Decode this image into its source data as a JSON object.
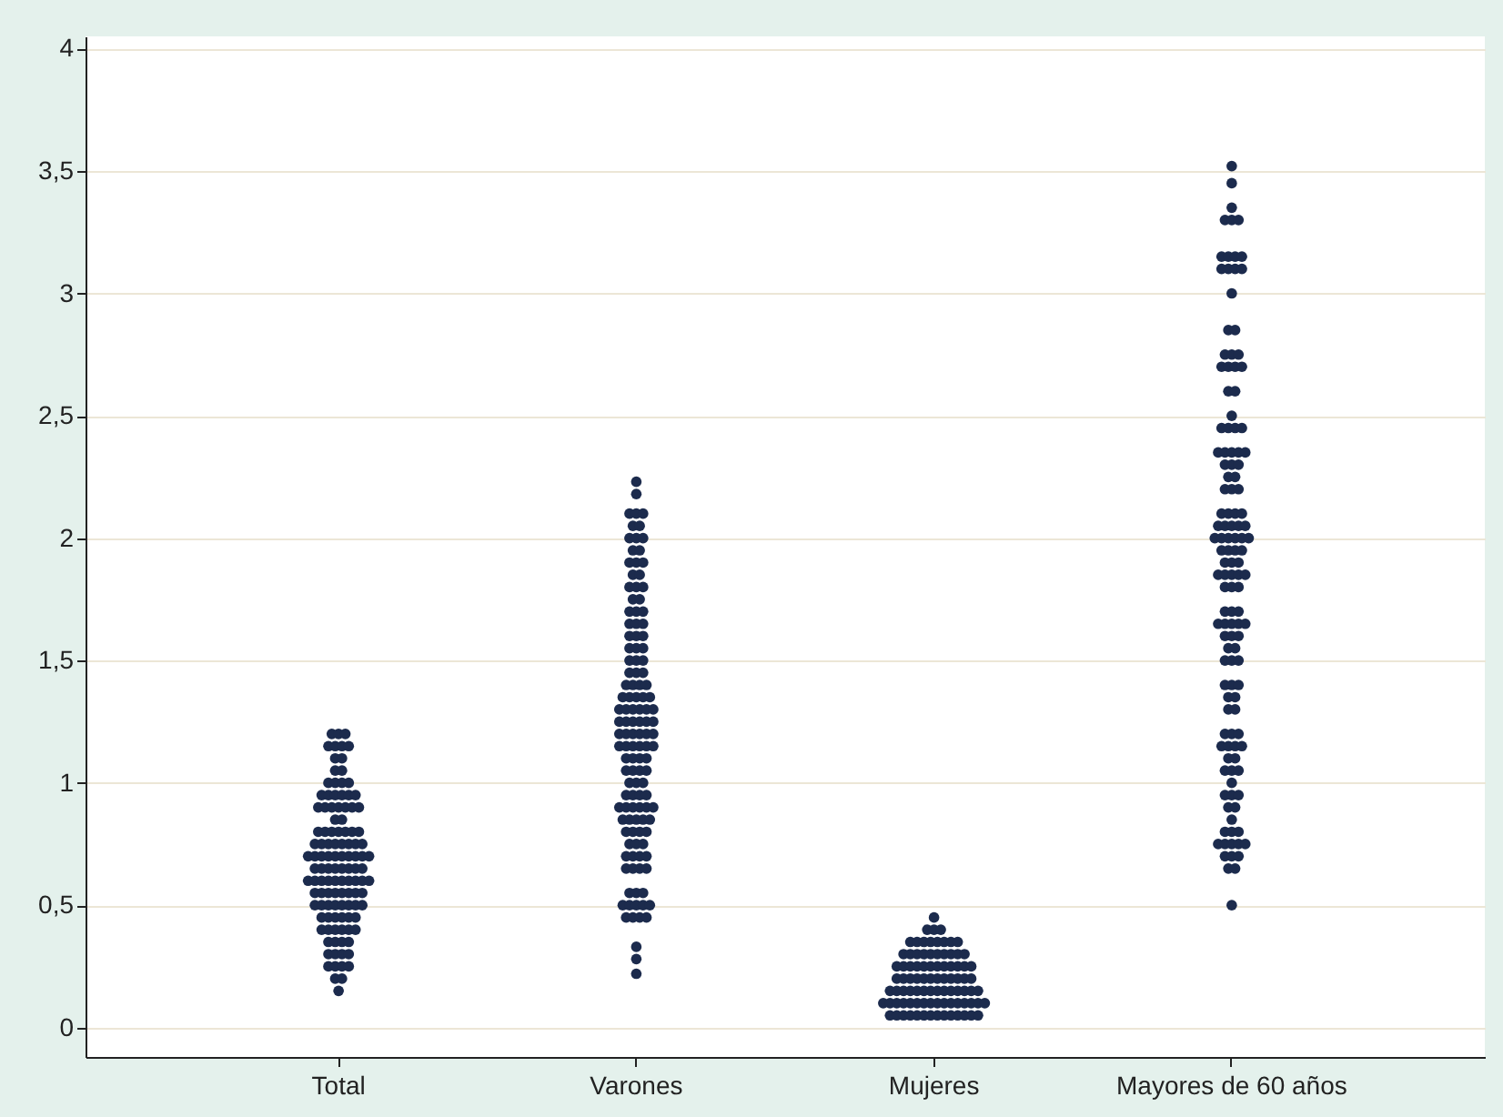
{
  "chart_data": {
    "type": "scatter",
    "categories": [
      "Total",
      "Varones",
      "Mujeres",
      "Mayores de 60 años"
    ],
    "ylim": [
      -0.12,
      4.05
    ],
    "yticks": [
      0,
      {
        "value": 0.5,
        "label": "0,5"
      },
      1,
      {
        "value": 1.5,
        "label": "1,5"
      },
      2,
      {
        "value": 2.5,
        "label": "2,5"
      },
      3,
      {
        "value": 3.5,
        "label": "3,5"
      },
      4
    ],
    "grid": "y",
    "marker": "circle",
    "legend": false,
    "series": [
      {
        "color": "#1c2b4d",
        "x": [
          "Total",
          "Total",
          "Total",
          "Total",
          "Total",
          "Total",
          "Total",
          "Total",
          "Total",
          "Total",
          "Total",
          "Total",
          "Total",
          "Total",
          "Total",
          "Total",
          "Total",
          "Total",
          "Total",
          "Total",
          "Total",
          "Total",
          "Total",
          "Total",
          "Total",
          "Total",
          "Total",
          "Total",
          "Total",
          "Total",
          "Total",
          "Total",
          "Total",
          "Total",
          "Total",
          "Total",
          "Total",
          "Total",
          "Total",
          "Total",
          "Total",
          "Total",
          "Total",
          "Total",
          "Total",
          "Total",
          "Total",
          "Total",
          "Total",
          "Total",
          "Total",
          "Total",
          "Total",
          "Total",
          "Total",
          "Total",
          "Total",
          "Total",
          "Total",
          "Total",
          "Total",
          "Total",
          "Total",
          "Total",
          "Total",
          "Total",
          "Total",
          "Total",
          "Total",
          "Total",
          "Total",
          "Total",
          "Total",
          "Total",
          "Total",
          "Total",
          "Total",
          "Total",
          "Total",
          "Total",
          "Total",
          "Total",
          "Total",
          "Total",
          "Total",
          "Total",
          "Total",
          "Total",
          "Total",
          "Total",
          "Total",
          "Total",
          "Total",
          "Total",
          "Total",
          "Total",
          "Total",
          "Total",
          "Total",
          "Total",
          "Total",
          "Total",
          "Total",
          "Total",
          "Total",
          "Total",
          "Total",
          "Total",
          "Total",
          "Total",
          "Total",
          "Total",
          "Total",
          "Total",
          "Total",
          "Total"
        ],
        "values": [
          0.15,
          0.2,
          0.2,
          0.25,
          0.25,
          0.25,
          0.25,
          0.3,
          0.3,
          0.3,
          0.3,
          0.35,
          0.35,
          0.35,
          0.35,
          0.4,
          0.4,
          0.4,
          0.4,
          0.4,
          0.4,
          0.45,
          0.45,
          0.45,
          0.45,
          0.45,
          0.45,
          0.5,
          0.5,
          0.5,
          0.5,
          0.5,
          0.5,
          0.5,
          0.5,
          0.55,
          0.55,
          0.55,
          0.55,
          0.55,
          0.55,
          0.55,
          0.55,
          0.6,
          0.6,
          0.6,
          0.6,
          0.6,
          0.6,
          0.6,
          0.6,
          0.6,
          0.6,
          0.65,
          0.65,
          0.65,
          0.65,
          0.65,
          0.65,
          0.65,
          0.65,
          0.7,
          0.7,
          0.7,
          0.7,
          0.7,
          0.7,
          0.7,
          0.7,
          0.7,
          0.7,
          0.75,
          0.75,
          0.75,
          0.75,
          0.75,
          0.75,
          0.75,
          0.75,
          0.8,
          0.8,
          0.8,
          0.8,
          0.8,
          0.8,
          0.8,
          0.85,
          0.85,
          0.9,
          0.9,
          0.9,
          0.9,
          0.9,
          0.9,
          0.9,
          0.95,
          0.95,
          0.95,
          0.95,
          0.95,
          0.95,
          1.0,
          1.0,
          1.0,
          1.0,
          1.05,
          1.05,
          1.1,
          1.1,
          1.15,
          1.15,
          1.15,
          1.15,
          1.2,
          1.2,
          1.2
        ]
      },
      {
        "color": "#1c2b4d",
        "x": [
          "Varones",
          "Varones",
          "Varones",
          "Varones",
          "Varones",
          "Varones",
          "Varones",
          "Varones",
          "Varones",
          "Varones",
          "Varones",
          "Varones",
          "Varones",
          "Varones",
          "Varones",
          "Varones",
          "Varones",
          "Varones",
          "Varones",
          "Varones",
          "Varones",
          "Varones",
          "Varones",
          "Varones",
          "Varones",
          "Varones",
          "Varones",
          "Varones",
          "Varones",
          "Varones",
          "Varones",
          "Varones",
          "Varones",
          "Varones",
          "Varones",
          "Varones",
          "Varones",
          "Varones",
          "Varones",
          "Varones",
          "Varones",
          "Varones",
          "Varones",
          "Varones",
          "Varones",
          "Varones",
          "Varones",
          "Varones",
          "Varones",
          "Varones",
          "Varones",
          "Varones",
          "Varones",
          "Varones",
          "Varones",
          "Varones",
          "Varones",
          "Varones",
          "Varones",
          "Varones",
          "Varones",
          "Varones",
          "Varones",
          "Varones",
          "Varones",
          "Varones",
          "Varones",
          "Varones",
          "Varones",
          "Varones",
          "Varones",
          "Varones",
          "Varones",
          "Varones",
          "Varones",
          "Varones",
          "Varones",
          "Varones",
          "Varones",
          "Varones",
          "Varones",
          "Varones",
          "Varones",
          "Varones",
          "Varones",
          "Varones",
          "Varones",
          "Varones",
          "Varones",
          "Varones",
          "Varones",
          "Varones",
          "Varones",
          "Varones",
          "Varones",
          "Varones",
          "Varones",
          "Varones",
          "Varones",
          "Varones",
          "Varones",
          "Varones",
          "Varones",
          "Varones",
          "Varones",
          "Varones",
          "Varones",
          "Varones",
          "Varones",
          "Varones",
          "Varones",
          "Varones",
          "Varones",
          "Varones",
          "Varones",
          "Varones",
          "Varones",
          "Varones",
          "Varones",
          "Varones",
          "Varones",
          "Varones",
          "Varones",
          "Varones",
          "Varones",
          "Varones",
          "Varones",
          "Varones",
          "Varones"
        ],
        "values": [
          0.22,
          0.28,
          0.33,
          0.45,
          0.45,
          0.45,
          0.45,
          0.5,
          0.5,
          0.5,
          0.5,
          0.5,
          0.55,
          0.55,
          0.55,
          0.65,
          0.65,
          0.65,
          0.65,
          0.7,
          0.7,
          0.7,
          0.7,
          0.75,
          0.75,
          0.75,
          0.8,
          0.8,
          0.8,
          0.8,
          0.85,
          0.85,
          0.85,
          0.85,
          0.85,
          0.9,
          0.9,
          0.9,
          0.9,
          0.9,
          0.9,
          0.95,
          0.95,
          0.95,
          0.95,
          1.0,
          1.0,
          1.0,
          1.05,
          1.05,
          1.05,
          1.05,
          1.1,
          1.1,
          1.1,
          1.1,
          1.15,
          1.15,
          1.15,
          1.15,
          1.15,
          1.15,
          1.2,
          1.2,
          1.2,
          1.2,
          1.2,
          1.2,
          1.25,
          1.25,
          1.25,
          1.25,
          1.25,
          1.25,
          1.3,
          1.3,
          1.3,
          1.3,
          1.3,
          1.3,
          1.35,
          1.35,
          1.35,
          1.35,
          1.35,
          1.4,
          1.4,
          1.4,
          1.4,
          1.45,
          1.45,
          1.45,
          1.5,
          1.5,
          1.5,
          1.55,
          1.55,
          1.55,
          1.6,
          1.6,
          1.6,
          1.65,
          1.65,
          1.65,
          1.7,
          1.7,
          1.7,
          1.75,
          1.75,
          1.8,
          1.8,
          1.8,
          1.85,
          1.85,
          1.9,
          1.9,
          1.9,
          1.95,
          1.95,
          2.0,
          2.0,
          2.0,
          2.05,
          2.05,
          2.1,
          2.1,
          2.1,
          2.18,
          2.23
        ]
      },
      {
        "color": "#1c2b4d",
        "x": [
          "Mujeres",
          "Mujeres",
          "Mujeres",
          "Mujeres",
          "Mujeres",
          "Mujeres",
          "Mujeres",
          "Mujeres",
          "Mujeres",
          "Mujeres",
          "Mujeres",
          "Mujeres",
          "Mujeres",
          "Mujeres",
          "Mujeres",
          "Mujeres",
          "Mujeres",
          "Mujeres",
          "Mujeres",
          "Mujeres",
          "Mujeres",
          "Mujeres",
          "Mujeres",
          "Mujeres",
          "Mujeres",
          "Mujeres",
          "Mujeres",
          "Mujeres",
          "Mujeres",
          "Mujeres",
          "Mujeres",
          "Mujeres",
          "Mujeres",
          "Mujeres",
          "Mujeres",
          "Mujeres",
          "Mujeres",
          "Mujeres",
          "Mujeres",
          "Mujeres",
          "Mujeres",
          "Mujeres",
          "Mujeres",
          "Mujeres",
          "Mujeres",
          "Mujeres",
          "Mujeres",
          "Mujeres",
          "Mujeres",
          "Mujeres",
          "Mujeres",
          "Mujeres",
          "Mujeres",
          "Mujeres",
          "Mujeres",
          "Mujeres",
          "Mujeres",
          "Mujeres",
          "Mujeres",
          "Mujeres",
          "Mujeres",
          "Mujeres",
          "Mujeres",
          "Mujeres",
          "Mujeres",
          "Mujeres",
          "Mujeres",
          "Mujeres",
          "Mujeres",
          "Mujeres",
          "Mujeres",
          "Mujeres",
          "Mujeres",
          "Mujeres",
          "Mujeres",
          "Mujeres",
          "Mujeres",
          "Mujeres",
          "Mujeres",
          "Mujeres",
          "Mujeres",
          "Mujeres",
          "Mujeres",
          "Mujeres",
          "Mujeres",
          "Mujeres",
          "Mujeres",
          "Mujeres",
          "Mujeres",
          "Mujeres"
        ],
        "values": [
          0.05,
          0.05,
          0.05,
          0.05,
          0.05,
          0.05,
          0.05,
          0.05,
          0.05,
          0.05,
          0.05,
          0.05,
          0.05,
          0.05,
          0.1,
          0.1,
          0.1,
          0.1,
          0.1,
          0.1,
          0.1,
          0.1,
          0.1,
          0.1,
          0.1,
          0.1,
          0.1,
          0.1,
          0.1,
          0.1,
          0.15,
          0.15,
          0.15,
          0.15,
          0.15,
          0.15,
          0.15,
          0.15,
          0.15,
          0.15,
          0.15,
          0.15,
          0.15,
          0.15,
          0.2,
          0.2,
          0.2,
          0.2,
          0.2,
          0.2,
          0.2,
          0.2,
          0.2,
          0.2,
          0.2,
          0.2,
          0.25,
          0.25,
          0.25,
          0.25,
          0.25,
          0.25,
          0.25,
          0.25,
          0.25,
          0.25,
          0.25,
          0.25,
          0.3,
          0.3,
          0.3,
          0.3,
          0.3,
          0.3,
          0.3,
          0.3,
          0.3,
          0.3,
          0.35,
          0.35,
          0.35,
          0.35,
          0.35,
          0.35,
          0.35,
          0.35,
          0.4,
          0.4,
          0.4,
          0.45
        ]
      },
      {
        "color": "#1c2b4d",
        "x": [
          "Mayores de 60 años",
          "Mayores de 60 años",
          "Mayores de 60 años",
          "Mayores de 60 años",
          "Mayores de 60 años",
          "Mayores de 60 años",
          "Mayores de 60 años",
          "Mayores de 60 años",
          "Mayores de 60 años",
          "Mayores de 60 años",
          "Mayores de 60 años",
          "Mayores de 60 años",
          "Mayores de 60 años",
          "Mayores de 60 años",
          "Mayores de 60 años",
          "Mayores de 60 años",
          "Mayores de 60 años",
          "Mayores de 60 años",
          "Mayores de 60 años",
          "Mayores de 60 años",
          "Mayores de 60 años",
          "Mayores de 60 años",
          "Mayores de 60 años",
          "Mayores de 60 años",
          "Mayores de 60 años",
          "Mayores de 60 años",
          "Mayores de 60 años",
          "Mayores de 60 años",
          "Mayores de 60 años",
          "Mayores de 60 años",
          "Mayores de 60 años",
          "Mayores de 60 años",
          "Mayores de 60 años",
          "Mayores de 60 años",
          "Mayores de 60 años",
          "Mayores de 60 años",
          "Mayores de 60 años",
          "Mayores de 60 años",
          "Mayores de 60 años",
          "Mayores de 60 años",
          "Mayores de 60 años",
          "Mayores de 60 años",
          "Mayores de 60 años",
          "Mayores de 60 años",
          "Mayores de 60 años",
          "Mayores de 60 años",
          "Mayores de 60 años",
          "Mayores de 60 años",
          "Mayores de 60 años",
          "Mayores de 60 años",
          "Mayores de 60 años",
          "Mayores de 60 años",
          "Mayores de 60 años",
          "Mayores de 60 años",
          "Mayores de 60 años",
          "Mayores de 60 años",
          "Mayores de 60 años",
          "Mayores de 60 años",
          "Mayores de 60 años",
          "Mayores de 60 años",
          "Mayores de 60 años",
          "Mayores de 60 años",
          "Mayores de 60 años",
          "Mayores de 60 años",
          "Mayores de 60 años",
          "Mayores de 60 años",
          "Mayores de 60 años",
          "Mayores de 60 años",
          "Mayores de 60 años",
          "Mayores de 60 años",
          "Mayores de 60 años",
          "Mayores de 60 años",
          "Mayores de 60 años",
          "Mayores de 60 años",
          "Mayores de 60 años",
          "Mayores de 60 años",
          "Mayores de 60 años",
          "Mayores de 60 años",
          "Mayores de 60 años",
          "Mayores de 60 años",
          "Mayores de 60 años",
          "Mayores de 60 años",
          "Mayores de 60 años",
          "Mayores de 60 años",
          "Mayores de 60 años",
          "Mayores de 60 años",
          "Mayores de 60 años",
          "Mayores de 60 años",
          "Mayores de 60 años",
          "Mayores de 60 años",
          "Mayores de 60 años",
          "Mayores de 60 años",
          "Mayores de 60 años",
          "Mayores de 60 años",
          "Mayores de 60 años",
          "Mayores de 60 años",
          "Mayores de 60 años",
          "Mayores de 60 años",
          "Mayores de 60 años",
          "Mayores de 60 años",
          "Mayores de 60 años",
          "Mayores de 60 años",
          "Mayores de 60 años",
          "Mayores de 60 años",
          "Mayores de 60 años",
          "Mayores de 60 años",
          "Mayores de 60 años",
          "Mayores de 60 años",
          "Mayores de 60 años",
          "Mayores de 60 años",
          "Mayores de 60 años",
          "Mayores de 60 años",
          "Mayores de 60 años",
          "Mayores de 60 años",
          "Mayores de 60 años",
          "Mayores de 60 años",
          "Mayores de 60 años",
          "Mayores de 60 años",
          "Mayores de 60 años",
          "Mayores de 60 años",
          "Mayores de 60 años",
          "Mayores de 60 años",
          "Mayores de 60 años",
          "Mayores de 60 años",
          "Mayores de 60 años",
          "Mayores de 60 años",
          "Mayores de 60 años",
          "Mayores de 60 años",
          "Mayores de 60 años",
          "Mayores de 60 años"
        ],
        "values": [
          0.5,
          0.65,
          0.65,
          0.7,
          0.7,
          0.7,
          0.75,
          0.75,
          0.75,
          0.75,
          0.75,
          0.8,
          0.8,
          0.8,
          0.85,
          0.9,
          0.9,
          0.95,
          0.95,
          0.95,
          1.0,
          1.05,
          1.05,
          1.05,
          1.1,
          1.1,
          1.15,
          1.15,
          1.15,
          1.15,
          1.2,
          1.2,
          1.2,
          1.3,
          1.3,
          1.35,
          1.35,
          1.4,
          1.4,
          1.4,
          1.5,
          1.5,
          1.5,
          1.55,
          1.55,
          1.6,
          1.6,
          1.6,
          1.65,
          1.65,
          1.65,
          1.65,
          1.65,
          1.7,
          1.7,
          1.7,
          1.8,
          1.8,
          1.8,
          1.85,
          1.85,
          1.85,
          1.85,
          1.85,
          1.9,
          1.9,
          1.9,
          1.95,
          1.95,
          1.95,
          1.95,
          2.0,
          2.0,
          2.0,
          2.0,
          2.0,
          2.0,
          2.05,
          2.05,
          2.05,
          2.05,
          2.05,
          2.1,
          2.1,
          2.1,
          2.1,
          2.2,
          2.2,
          2.2,
          2.25,
          2.25,
          2.3,
          2.3,
          2.3,
          2.35,
          2.35,
          2.35,
          2.35,
          2.35,
          2.45,
          2.45,
          2.45,
          2.45,
          2.5,
          2.6,
          2.6,
          2.7,
          2.7,
          2.7,
          2.7,
          2.75,
          2.75,
          2.75,
          2.85,
          2.85,
          3.0,
          3.1,
          3.1,
          3.1,
          3.1,
          3.15,
          3.15,
          3.15,
          3.15,
          3.3,
          3.3,
          3.3,
          3.35,
          3.45,
          3.52
        ]
      }
    ]
  }
}
